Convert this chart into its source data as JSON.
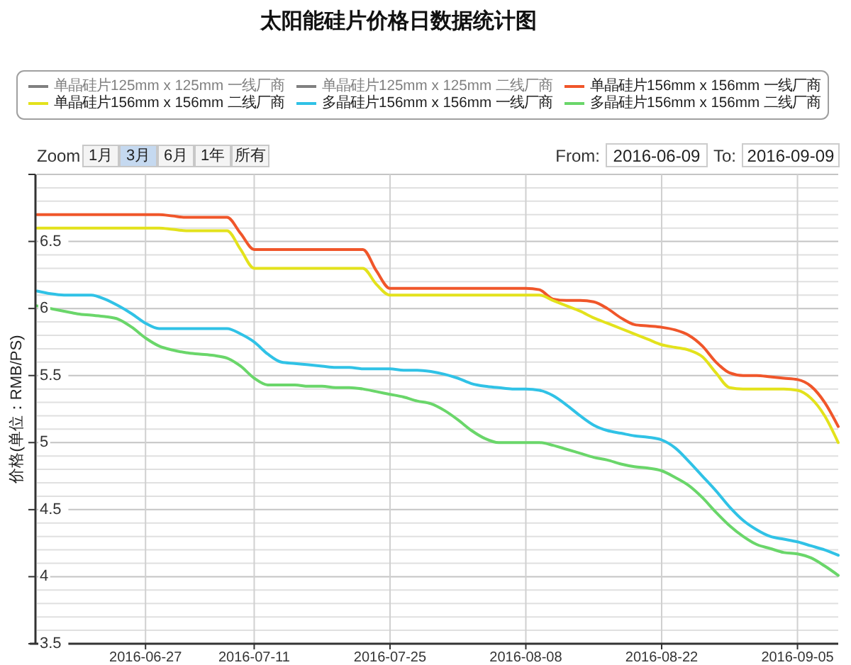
{
  "chart_data": {
    "type": "line",
    "title": "太阳能硅片价格日数据统计图",
    "ylabel": "价格(单位：RMB/PS)",
    "annotations": [
      "Zoom",
      "1月",
      "3月",
      "6月",
      "1年",
      "所有",
      "From:",
      "2016-06-09",
      "To:",
      "2016-09-09"
    ],
    "categories": [
      null,
      null,
      null,
      null,
      null,
      null,
      null,
      null,
      "2016-06-27",
      null,
      null,
      null,
      null,
      null,
      null,
      null,
      "2016-07-11",
      null,
      null,
      null,
      null,
      null,
      null,
      null,
      null,
      null,
      "2016-07-25",
      null,
      null,
      null,
      null,
      null,
      null,
      null,
      null,
      null,
      "2016-08-08",
      null,
      null,
      null,
      null,
      null,
      null,
      null,
      null,
      null,
      "2016-08-22",
      null,
      null,
      null,
      null,
      null,
      null,
      null,
      null,
      null,
      "2016-09-05",
      null,
      null,
      null
    ],
    "series": [
      {
        "name": "单晶硅片125mm x 125mm 一线厂商",
        "color": "#808080",
        "values": [
          null,
          null,
          null,
          null,
          null,
          null,
          null,
          null,
          null,
          null,
          null,
          null,
          null,
          null,
          null,
          null,
          null,
          null,
          null,
          null,
          null,
          null,
          null,
          null,
          null,
          null,
          null,
          null,
          null,
          null,
          null,
          null,
          null,
          null,
          null,
          null,
          null,
          null,
          null,
          null,
          null,
          null,
          null,
          null,
          null,
          null,
          null,
          null,
          null,
          null,
          null,
          null,
          null,
          null,
          null,
          null,
          null,
          null,
          null,
          null
        ]
      },
      {
        "name": "单晶硅片125mm x 125mm 二线厂商",
        "color": "#808080",
        "values": [
          null,
          null,
          null,
          null,
          null,
          null,
          null,
          null,
          null,
          null,
          null,
          null,
          null,
          null,
          null,
          null,
          null,
          null,
          null,
          null,
          null,
          null,
          null,
          null,
          null,
          null,
          null,
          null,
          null,
          null,
          null,
          null,
          null,
          null,
          null,
          null,
          null,
          null,
          null,
          null,
          null,
          null,
          null,
          null,
          null,
          null,
          null,
          null,
          null,
          null,
          null,
          null,
          null,
          null,
          null,
          null,
          null,
          null,
          null,
          null
        ]
      },
      {
        "name": "单晶硅片156mm x 156mm 一线厂商",
        "color": "#f0562a",
        "values": [
          6.7,
          6.7,
          6.7,
          6.7,
          6.7,
          6.7,
          6.7,
          6.7,
          6.7,
          6.7,
          6.69,
          6.68,
          6.68,
          6.68,
          6.68,
          6.56,
          6.44,
          6.44,
          6.44,
          6.44,
          6.44,
          6.44,
          6.44,
          6.44,
          6.44,
          6.28,
          6.15,
          6.15,
          6.15,
          6.15,
          6.15,
          6.15,
          6.15,
          6.15,
          6.15,
          6.15,
          6.15,
          6.14,
          6.07,
          6.06,
          6.06,
          6.05,
          6.0,
          5.93,
          5.88,
          5.87,
          5.86,
          5.84,
          5.8,
          5.72,
          5.6,
          5.52,
          5.5,
          5.5,
          5.49,
          5.48,
          5.47,
          5.42,
          5.3,
          5.12
        ]
      },
      {
        "name": "单晶硅片156mm x 156mm 二线厂商",
        "color": "#e3e21c",
        "values": [
          6.6,
          6.6,
          6.6,
          6.6,
          6.6,
          6.6,
          6.6,
          6.6,
          6.6,
          6.6,
          6.59,
          6.58,
          6.58,
          6.58,
          6.58,
          6.44,
          6.3,
          6.3,
          6.3,
          6.3,
          6.3,
          6.3,
          6.3,
          6.3,
          6.3,
          6.18,
          6.1,
          6.1,
          6.1,
          6.1,
          6.1,
          6.1,
          6.1,
          6.1,
          6.1,
          6.1,
          6.1,
          6.1,
          6.06,
          6.02,
          5.98,
          5.93,
          5.89,
          5.85,
          5.81,
          5.77,
          5.73,
          5.71,
          5.69,
          5.64,
          5.52,
          5.41,
          5.4,
          5.4,
          5.4,
          5.4,
          5.39,
          5.33,
          5.2,
          5.0
        ]
      },
      {
        "name": "多晶硅片156mm x 156mm 一线厂商",
        "color": "#30c2e6",
        "values": [
          6.13,
          6.11,
          6.1,
          6.1,
          6.1,
          6.07,
          6.02,
          5.96,
          5.89,
          5.85,
          5.85,
          5.85,
          5.85,
          5.85,
          5.85,
          5.81,
          5.75,
          5.66,
          5.6,
          5.59,
          5.58,
          5.57,
          5.56,
          5.56,
          5.55,
          5.55,
          5.55,
          5.54,
          5.54,
          5.53,
          5.51,
          5.48,
          5.44,
          5.42,
          5.41,
          5.4,
          5.4,
          5.39,
          5.35,
          5.28,
          5.2,
          5.13,
          5.09,
          5.07,
          5.05,
          5.04,
          5.02,
          4.96,
          4.86,
          4.75,
          4.64,
          4.52,
          4.42,
          4.35,
          4.3,
          4.28,
          4.26,
          4.23,
          4.2,
          4.16
        ]
      },
      {
        "name": "多晶硅片156mm x 156mm 二线厂商",
        "color": "#6ad66a",
        "values": [
          6.02,
          6.0,
          5.98,
          5.96,
          5.95,
          5.94,
          5.92,
          5.86,
          5.78,
          5.72,
          5.69,
          5.67,
          5.66,
          5.65,
          5.63,
          5.57,
          5.48,
          5.43,
          5.43,
          5.43,
          5.42,
          5.42,
          5.41,
          5.41,
          5.4,
          5.38,
          5.36,
          5.34,
          5.31,
          5.29,
          5.24,
          5.17,
          5.09,
          5.03,
          5.0,
          5.0,
          5.0,
          5.0,
          4.98,
          4.95,
          4.92,
          4.89,
          4.87,
          4.84,
          4.82,
          4.81,
          4.79,
          4.74,
          4.68,
          4.59,
          4.48,
          4.38,
          4.3,
          4.24,
          4.21,
          4.18,
          4.17,
          4.14,
          4.08,
          4.01
        ]
      }
    ],
    "ylim": [
      3.5,
      7
    ],
    "yticks": [
      3.5,
      {
        "value": 3.6,
        "label": null
      },
      {
        "value": 3.7,
        "label": null
      },
      {
        "value": 3.8,
        "label": null
      },
      {
        "value": 3.9,
        "label": null
      },
      4,
      {
        "value": 4.1,
        "label": null
      },
      {
        "value": 4.2,
        "label": null
      },
      {
        "value": 4.3,
        "label": null
      },
      {
        "value": 4.4,
        "label": null
      },
      4.5,
      {
        "value": 4.6,
        "label": null
      },
      {
        "value": 4.7,
        "label": null
      },
      {
        "value": 4.8,
        "label": null
      },
      {
        "value": 4.9,
        "label": null
      },
      5,
      {
        "value": 5.1,
        "label": null
      },
      {
        "value": 5.2,
        "label": null
      },
      {
        "value": 5.3,
        "label": null
      },
      {
        "value": 5.4,
        "label": null
      },
      5.5,
      {
        "value": 5.6,
        "label": null
      },
      {
        "value": 5.7,
        "label": null
      },
      {
        "value": 5.8,
        "label": null
      },
      {
        "value": 5.9,
        "label": null
      },
      6,
      {
        "value": 6.1,
        "label": null
      },
      {
        "value": 6.2,
        "label": null
      },
      {
        "value": 6.3,
        "label": null
      },
      {
        "value": 6.4,
        "label": null
      },
      6.5,
      {
        "value": 6.6,
        "label": null
      },
      {
        "value": 6.7,
        "label": null
      },
      {
        "value": 6.8,
        "label": null
      },
      {
        "value": 6.9,
        "label": null
      },
      {
        "value": 7,
        "label": null
      }
    ],
    "grid": true,
    "legend": "top",
    "line_style": "solid"
  }
}
